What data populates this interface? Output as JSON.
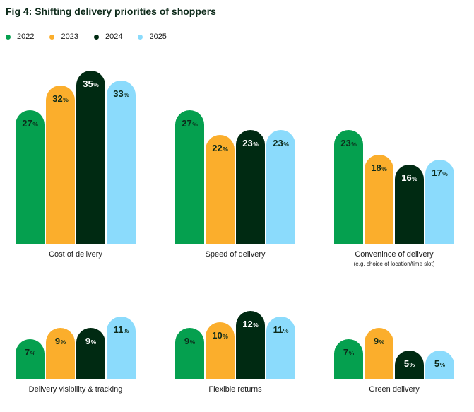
{
  "chart_data": {
    "type": "bar",
    "title": "Fig 4: Shifting delivery priorities of shoppers",
    "unit_suffix": "%",
    "series": [
      {
        "name": "2022",
        "color": "#05a04f"
      },
      {
        "name": "2023",
        "color": "#fbae2c"
      },
      {
        "name": "2024",
        "color": "#002a12"
      },
      {
        "name": "2025",
        "color": "#8bdbfc"
      }
    ],
    "value_label_colors": [
      "#0d2a1a",
      "#0d2a1a",
      "#ffffff",
      "#0d2a1a"
    ],
    "groups": [
      {
        "category": "Cost of delivery",
        "subtitle": "",
        "values": [
          27,
          32,
          35,
          33
        ]
      },
      {
        "category": "Speed of delivery",
        "subtitle": "",
        "values": [
          27,
          22,
          23,
          23
        ]
      },
      {
        "category": "Convenince of delivery",
        "subtitle": "(e.g. choice of location/time slot)",
        "values": [
          23,
          18,
          16,
          17
        ]
      },
      {
        "category": "Delivery visibility & tracking",
        "subtitle": "",
        "values": [
          7,
          9,
          9,
          11
        ]
      },
      {
        "category": "Flexible returns",
        "subtitle": "",
        "values": [
          9,
          10,
          12,
          11
        ]
      },
      {
        "category": "Green delivery",
        "subtitle": "",
        "values": [
          7,
          9,
          5,
          5
        ]
      }
    ]
  }
}
